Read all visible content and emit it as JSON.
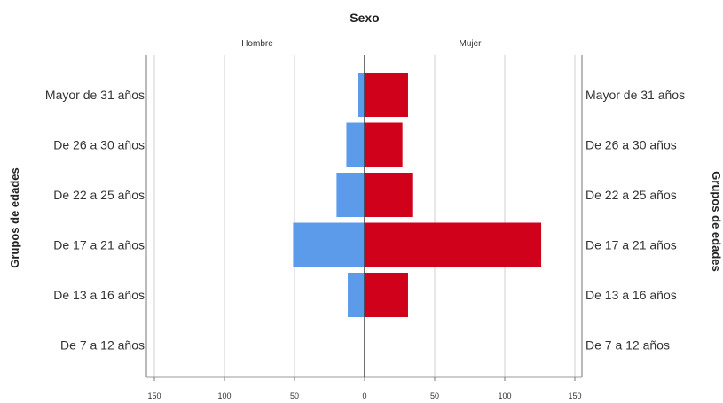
{
  "chart_data": {
    "type": "bar",
    "title": "Sexo",
    "ylabel": "Grupos de edades",
    "xlabel": "",
    "categories": [
      "Mayor de 31 años",
      "De 26 a 30 años",
      "De 22 a 25 años",
      "De 17 a 21 años",
      "De 13 a 16 años",
      "De 7 a 12 años"
    ],
    "series": [
      {
        "name": "Hombre",
        "values": [
          5,
          13,
          20,
          51,
          12,
          0
        ],
        "color": "#5b9bea"
      },
      {
        "name": "Mujer",
        "values": [
          31,
          27,
          34,
          126,
          31,
          0
        ],
        "color": "#d0021b"
      }
    ],
    "xlim": [
      0,
      150
    ],
    "x_ticks": [
      "150",
      "100",
      "50",
      "0",
      "50",
      "100",
      "150"
    ],
    "grid": true,
    "orientation": "population-pyramid"
  }
}
